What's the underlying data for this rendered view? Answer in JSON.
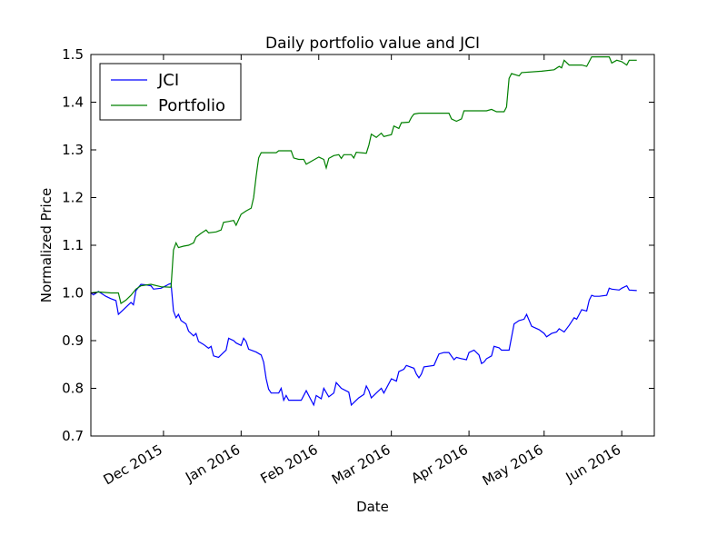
{
  "chart_data": {
    "type": "line",
    "title": "Daily portfolio value and JCI",
    "xlabel": "Date",
    "ylabel": "Normalized Price",
    "xlim": [
      "2015-11-02",
      "2016-06-14"
    ],
    "ylim": [
      0.7,
      1.5
    ],
    "yticks": [
      0.7,
      0.8,
      0.9,
      1.0,
      1.1,
      1.2,
      1.3,
      1.4,
      1.5
    ],
    "ytick_labels": [
      "0.7",
      "0.8",
      "0.9",
      "1.0",
      "1.1",
      "1.2",
      "1.3",
      "1.4",
      "1.5"
    ],
    "xticks": [
      "2015-12-01",
      "2016-01-01",
      "2016-02-01",
      "2016-03-01",
      "2016-04-01",
      "2016-05-01",
      "2016-06-01"
    ],
    "xtick_labels": [
      "Dec 2015",
      "Jan 2016",
      "Feb 2016",
      "Mar 2016",
      "Apr 2016",
      "May 2016",
      "Jun 2016"
    ],
    "grid": false,
    "legend": "upper-left",
    "series": [
      {
        "name": "JCI",
        "color": "#0000ff",
        "points": [
          [
            "2015-11-02",
            1.0
          ],
          [
            "2015-11-03",
            0.996
          ],
          [
            "2015-11-05",
            1.003
          ],
          [
            "2015-11-08",
            0.993
          ],
          [
            "2015-11-10",
            0.988
          ],
          [
            "2015-11-12",
            0.984
          ],
          [
            "2015-11-13",
            0.955
          ],
          [
            "2015-11-15",
            0.965
          ],
          [
            "2015-11-18",
            0.98
          ],
          [
            "2015-11-19",
            0.975
          ],
          [
            "2015-11-20",
            1.005
          ],
          [
            "2015-11-22",
            1.018
          ],
          [
            "2015-11-24",
            1.017
          ],
          [
            "2015-11-26",
            1.015
          ],
          [
            "2015-11-27",
            1.008
          ],
          [
            "2015-11-30",
            1.01
          ],
          [
            "2015-12-02",
            1.015
          ],
          [
            "2015-12-03",
            1.018
          ],
          [
            "2015-12-04",
            1.02
          ],
          [
            "2015-12-05",
            0.962
          ],
          [
            "2015-12-06",
            0.948
          ],
          [
            "2015-12-07",
            0.955
          ],
          [
            "2015-12-08",
            0.942
          ],
          [
            "2015-12-10",
            0.935
          ],
          [
            "2015-12-11",
            0.92
          ],
          [
            "2015-12-13",
            0.91
          ],
          [
            "2015-12-14",
            0.915
          ],
          [
            "2015-12-15",
            0.898
          ],
          [
            "2015-12-17",
            0.892
          ],
          [
            "2015-12-19",
            0.884
          ],
          [
            "2015-12-20",
            0.888
          ],
          [
            "2015-12-21",
            0.868
          ],
          [
            "2015-12-23",
            0.865
          ],
          [
            "2015-12-25",
            0.875
          ],
          [
            "2015-12-26",
            0.88
          ],
          [
            "2015-12-27",
            0.905
          ],
          [
            "2015-12-29",
            0.9
          ],
          [
            "2015-12-30",
            0.895
          ],
          [
            "2016-01-01",
            0.89
          ],
          [
            "2016-01-02",
            0.905
          ],
          [
            "2016-01-03",
            0.898
          ],
          [
            "2016-01-04",
            0.882
          ],
          [
            "2016-01-07",
            0.876
          ],
          [
            "2016-01-09",
            0.87
          ],
          [
            "2016-01-10",
            0.855
          ],
          [
            "2016-01-11",
            0.82
          ],
          [
            "2016-01-12",
            0.798
          ],
          [
            "2016-01-13",
            0.79
          ],
          [
            "2016-01-16",
            0.79
          ],
          [
            "2016-01-17",
            0.8
          ],
          [
            "2016-01-18",
            0.775
          ],
          [
            "2016-01-19",
            0.785
          ],
          [
            "2016-01-20",
            0.775
          ],
          [
            "2016-01-25",
            0.775
          ],
          [
            "2016-01-27",
            0.795
          ],
          [
            "2016-01-28",
            0.785
          ],
          [
            "2016-01-30",
            0.765
          ],
          [
            "2016-01-31",
            0.785
          ],
          [
            "2016-02-02",
            0.778
          ],
          [
            "2016-02-03",
            0.8
          ],
          [
            "2016-02-05",
            0.782
          ],
          [
            "2016-02-07",
            0.79
          ],
          [
            "2016-02-08",
            0.812
          ],
          [
            "2016-02-10",
            0.8
          ],
          [
            "2016-02-13",
            0.792
          ],
          [
            "2016-02-14",
            0.765
          ],
          [
            "2016-02-16",
            0.775
          ],
          [
            "2016-02-17",
            0.78
          ],
          [
            "2016-02-19",
            0.787
          ],
          [
            "2016-02-20",
            0.805
          ],
          [
            "2016-02-21",
            0.795
          ],
          [
            "2016-02-22",
            0.78
          ],
          [
            "2016-02-24",
            0.79
          ],
          [
            "2016-02-26",
            0.8
          ],
          [
            "2016-02-27",
            0.79
          ],
          [
            "2016-03-01",
            0.82
          ],
          [
            "2016-03-03",
            0.815
          ],
          [
            "2016-03-04",
            0.835
          ],
          [
            "2016-03-06",
            0.84
          ],
          [
            "2016-03-07",
            0.848
          ],
          [
            "2016-03-10",
            0.842
          ],
          [
            "2016-03-11",
            0.83
          ],
          [
            "2016-03-12",
            0.822
          ],
          [
            "2016-03-13",
            0.83
          ],
          [
            "2016-03-14",
            0.845
          ],
          [
            "2016-03-18",
            0.848
          ],
          [
            "2016-03-20",
            0.872
          ],
          [
            "2016-03-22",
            0.875
          ],
          [
            "2016-03-24",
            0.875
          ],
          [
            "2016-03-26",
            0.86
          ],
          [
            "2016-03-27",
            0.865
          ],
          [
            "2016-03-29",
            0.862
          ],
          [
            "2016-03-31",
            0.86
          ],
          [
            "2016-04-01",
            0.875
          ],
          [
            "2016-04-03",
            0.88
          ],
          [
            "2016-04-05",
            0.87
          ],
          [
            "2016-04-06",
            0.852
          ],
          [
            "2016-04-07",
            0.855
          ],
          [
            "2016-04-08",
            0.862
          ],
          [
            "2016-04-10",
            0.868
          ],
          [
            "2016-04-11",
            0.888
          ],
          [
            "2016-04-13",
            0.885
          ],
          [
            "2016-04-14",
            0.88
          ],
          [
            "2016-04-17",
            0.88
          ],
          [
            "2016-04-19",
            0.935
          ],
          [
            "2016-04-21",
            0.942
          ],
          [
            "2016-04-23",
            0.945
          ],
          [
            "2016-04-24",
            0.955
          ],
          [
            "2016-04-26",
            0.93
          ],
          [
            "2016-04-29",
            0.923
          ],
          [
            "2016-05-01",
            0.915
          ],
          [
            "2016-05-02",
            0.908
          ],
          [
            "2016-05-04",
            0.915
          ],
          [
            "2016-05-06",
            0.918
          ],
          [
            "2016-05-07",
            0.925
          ],
          [
            "2016-05-09",
            0.918
          ],
          [
            "2016-05-11",
            0.932
          ],
          [
            "2016-05-13",
            0.948
          ],
          [
            "2016-05-14",
            0.945
          ],
          [
            "2016-05-16",
            0.965
          ],
          [
            "2016-05-18",
            0.962
          ],
          [
            "2016-05-19",
            0.985
          ],
          [
            "2016-05-20",
            0.995
          ],
          [
            "2016-05-21",
            0.993
          ],
          [
            "2016-05-23",
            0.993
          ],
          [
            "2016-05-26",
            0.995
          ],
          [
            "2016-05-27",
            1.01
          ],
          [
            "2016-05-28",
            1.008
          ],
          [
            "2016-05-31",
            1.006
          ],
          [
            "2016-06-01",
            1.01
          ],
          [
            "2016-06-03",
            1.015
          ],
          [
            "2016-06-04",
            1.006
          ],
          [
            "2016-06-07",
            1.005
          ]
        ]
      },
      {
        "name": "Portfolio",
        "color": "#008000",
        "points": [
          [
            "2015-11-02",
            1.0
          ],
          [
            "2015-11-05",
            1.002
          ],
          [
            "2015-11-10",
            1.0
          ],
          [
            "2015-11-13",
            1.0
          ],
          [
            "2015-11-14",
            0.978
          ],
          [
            "2015-11-16",
            0.985
          ],
          [
            "2015-11-18",
            0.995
          ],
          [
            "2015-11-20",
            1.008
          ],
          [
            "2015-11-22",
            1.015
          ],
          [
            "2015-11-26",
            1.018
          ],
          [
            "2015-11-30",
            1.013
          ],
          [
            "2015-12-04",
            1.012
          ],
          [
            "2015-12-05",
            1.09
          ],
          [
            "2015-12-06",
            1.105
          ],
          [
            "2015-12-07",
            1.095
          ],
          [
            "2015-12-09",
            1.098
          ],
          [
            "2015-12-11",
            1.1
          ],
          [
            "2015-12-13",
            1.105
          ],
          [
            "2015-12-14",
            1.117
          ],
          [
            "2015-12-16",
            1.125
          ],
          [
            "2015-12-18",
            1.132
          ],
          [
            "2015-12-19",
            1.126
          ],
          [
            "2015-12-22",
            1.128
          ],
          [
            "2015-12-24",
            1.132
          ],
          [
            "2015-12-25",
            1.148
          ],
          [
            "2015-12-27",
            1.15
          ],
          [
            "2015-12-29",
            1.152
          ],
          [
            "2015-12-30",
            1.142
          ],
          [
            "2016-01-01",
            1.165
          ],
          [
            "2016-01-03",
            1.172
          ],
          [
            "2016-01-05",
            1.178
          ],
          [
            "2016-01-06",
            1.2
          ],
          [
            "2016-01-07",
            1.245
          ],
          [
            "2016-01-08",
            1.283
          ],
          [
            "2016-01-09",
            1.294
          ],
          [
            "2016-01-12",
            1.294
          ],
          [
            "2016-01-15",
            1.294
          ],
          [
            "2016-01-16",
            1.298
          ],
          [
            "2016-01-21",
            1.298
          ],
          [
            "2016-01-22",
            1.283
          ],
          [
            "2016-01-24",
            1.28
          ],
          [
            "2016-01-26",
            1.28
          ],
          [
            "2016-01-27",
            1.27
          ],
          [
            "2016-01-29",
            1.276
          ],
          [
            "2016-02-01",
            1.285
          ],
          [
            "2016-02-03",
            1.28
          ],
          [
            "2016-02-04",
            1.262
          ],
          [
            "2016-02-05",
            1.282
          ],
          [
            "2016-02-07",
            1.288
          ],
          [
            "2016-02-09",
            1.29
          ],
          [
            "2016-02-10",
            1.282
          ],
          [
            "2016-02-11",
            1.29
          ],
          [
            "2016-02-14",
            1.29
          ],
          [
            "2016-02-15",
            1.283
          ],
          [
            "2016-02-16",
            1.295
          ],
          [
            "2016-02-20",
            1.293
          ],
          [
            "2016-02-21",
            1.31
          ],
          [
            "2016-02-22",
            1.333
          ],
          [
            "2016-02-24",
            1.326
          ],
          [
            "2016-02-26",
            1.335
          ],
          [
            "2016-02-27",
            1.328
          ],
          [
            "2016-03-01",
            1.332
          ],
          [
            "2016-03-02",
            1.35
          ],
          [
            "2016-03-04",
            1.345
          ],
          [
            "2016-03-05",
            1.357
          ],
          [
            "2016-03-08",
            1.358
          ],
          [
            "2016-03-09",
            1.368
          ],
          [
            "2016-03-10",
            1.375
          ],
          [
            "2016-03-12",
            1.377
          ],
          [
            "2016-03-24",
            1.377
          ],
          [
            "2016-03-25",
            1.365
          ],
          [
            "2016-03-27",
            1.36
          ],
          [
            "2016-03-29",
            1.365
          ],
          [
            "2016-03-30",
            1.382
          ],
          [
            "2016-04-08",
            1.382
          ],
          [
            "2016-04-10",
            1.385
          ],
          [
            "2016-04-12",
            1.38
          ],
          [
            "2016-04-15",
            1.38
          ],
          [
            "2016-04-16",
            1.39
          ],
          [
            "2016-04-17",
            1.45
          ],
          [
            "2016-04-18",
            1.46
          ],
          [
            "2016-04-21",
            1.455
          ],
          [
            "2016-04-22",
            1.462
          ],
          [
            "2016-04-30",
            1.465
          ],
          [
            "2016-05-05",
            1.468
          ],
          [
            "2016-05-07",
            1.475
          ],
          [
            "2016-05-08",
            1.472
          ],
          [
            "2016-05-09",
            1.488
          ],
          [
            "2016-05-11",
            1.478
          ],
          [
            "2016-05-16",
            1.478
          ],
          [
            "2016-05-18",
            1.475
          ],
          [
            "2016-05-20",
            1.495
          ],
          [
            "2016-05-27",
            1.495
          ],
          [
            "2016-05-28",
            1.482
          ],
          [
            "2016-05-30",
            1.488
          ],
          [
            "2016-06-01",
            1.485
          ],
          [
            "2016-06-03",
            1.478
          ],
          [
            "2016-06-04",
            1.488
          ],
          [
            "2016-06-07",
            1.488
          ]
        ]
      }
    ]
  }
}
